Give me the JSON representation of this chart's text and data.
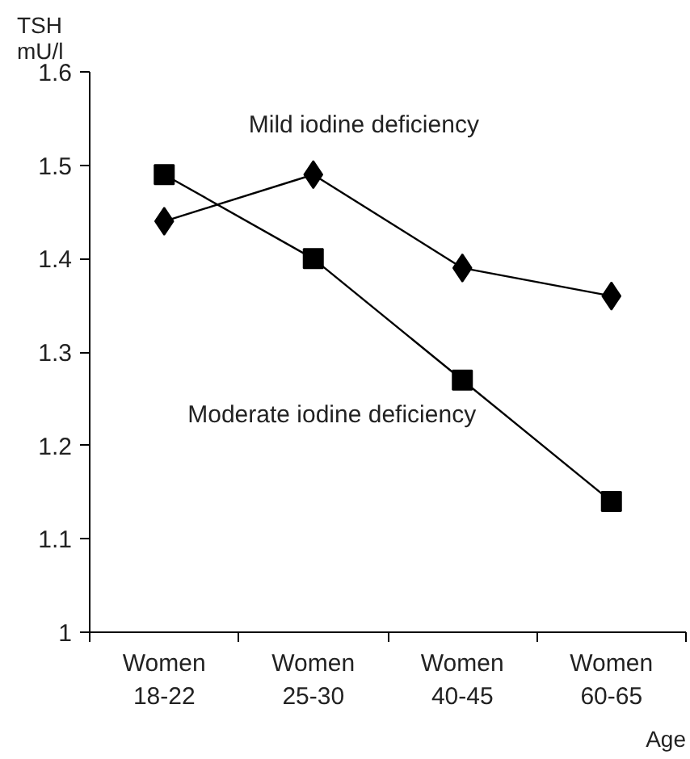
{
  "chart_data": {
    "type": "line",
    "ylabel": "TSH\nmU/l",
    "xlabel": "Age",
    "categories": [
      "Women\n18-22",
      "Women\n25-30",
      "Women\n40-45",
      "Women\n60-65"
    ],
    "series": [
      {
        "name": "Mild iodine deficiency",
        "color": "#000000",
        "marker": "diamond",
        "values": [
          1.44,
          1.49,
          1.39,
          1.36
        ]
      },
      {
        "name": "Moderate iodine deficiency",
        "color": "#000000",
        "marker": "square",
        "values": [
          1.49,
          1.4,
          1.27,
          1.14
        ]
      }
    ],
    "ylim": [
      1,
      1.6
    ],
    "yticks": [
      1,
      1.1,
      1.2,
      1.3,
      1.4,
      1.5,
      1.6
    ],
    "grid": false,
    "line_style": "solid"
  }
}
